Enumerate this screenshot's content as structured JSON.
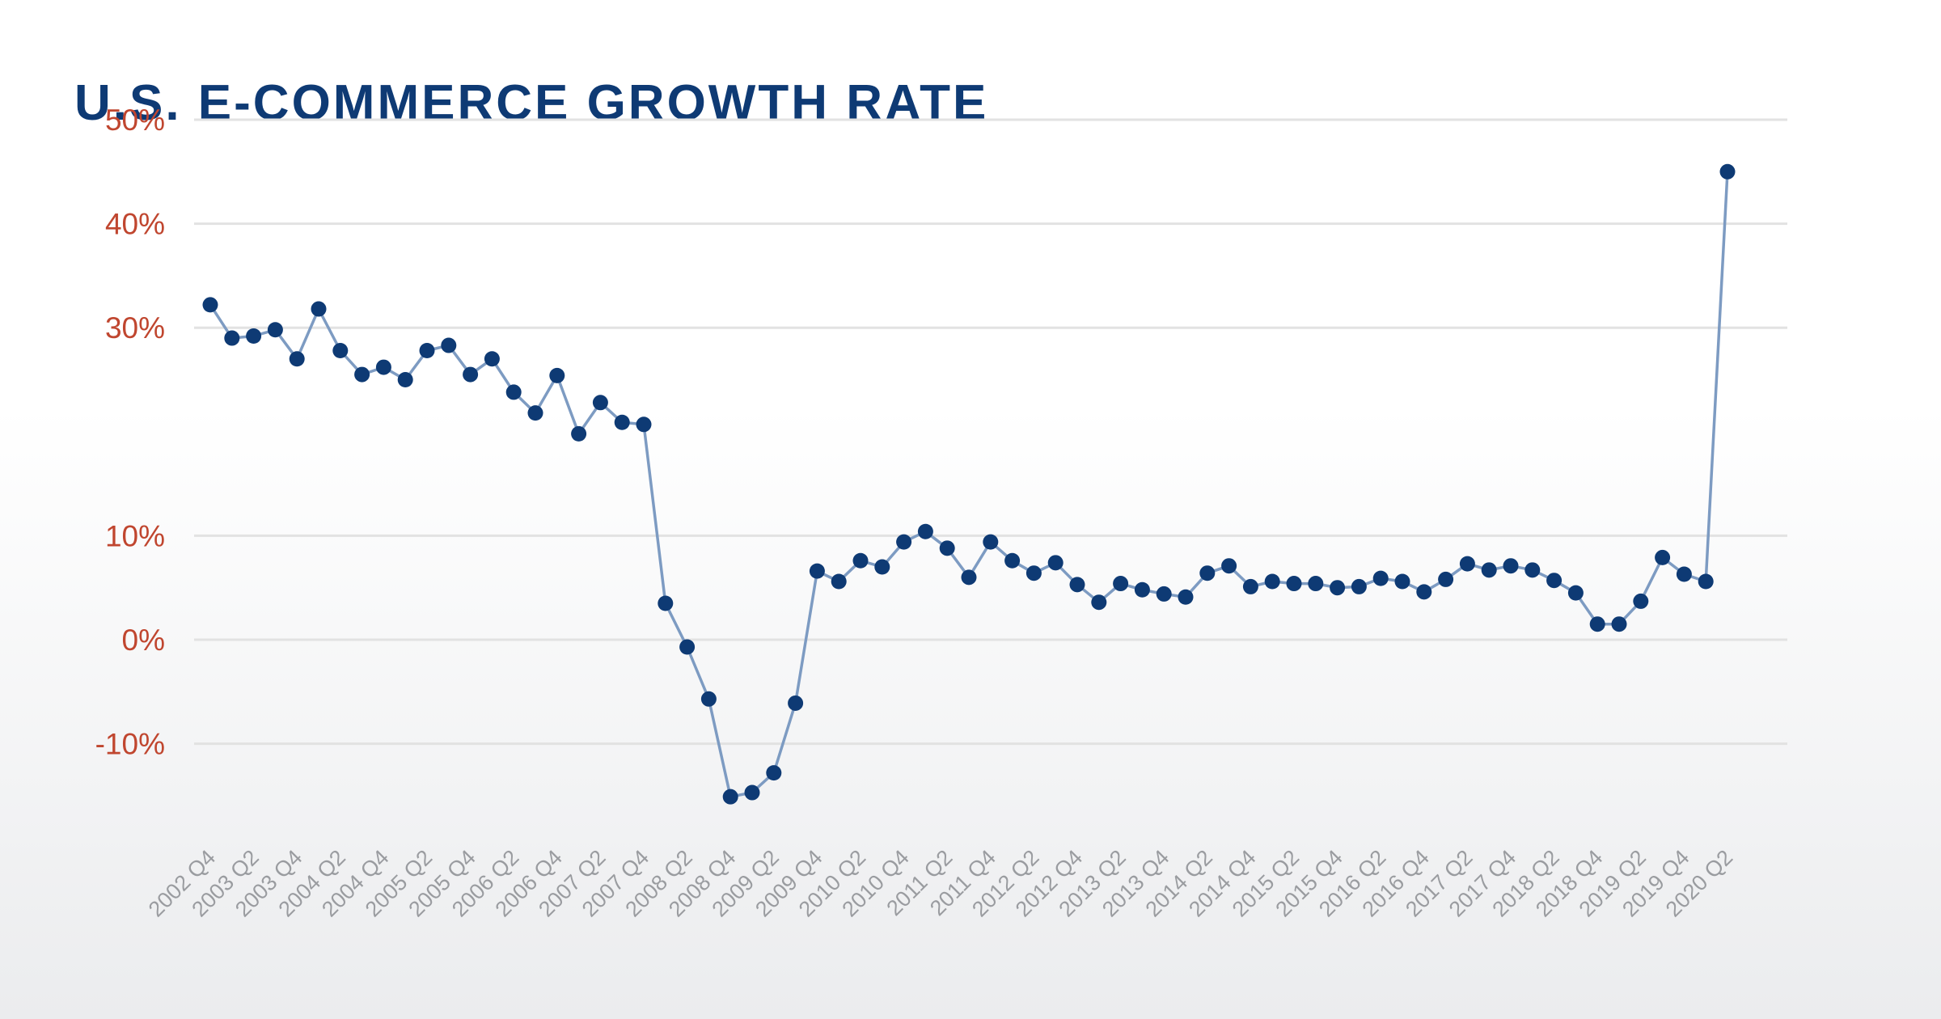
{
  "chart_data": {
    "type": "line",
    "title": "U.S. E-COMMERCE GROWTH RATE",
    "colors": {
      "title": "#0e3a74",
      "y_tick_labels": "#c0462f",
      "x_tick_labels": "#9a9ca0",
      "line": "#7d9bc2",
      "points": "#0e3a74",
      "grid": "#e2e2e2"
    },
    "grid": true,
    "legend": "none",
    "yticks": [
      {
        "value": 50,
        "label": "50%"
      },
      {
        "value": 40,
        "label": "40%"
      },
      {
        "value": 30,
        "label": "30%"
      },
      {
        "value": 10,
        "label": "10%"
      },
      {
        "value": 0,
        "label": "0%"
      },
      {
        "value": -10,
        "label": "-10%"
      }
    ],
    "x_tick_labels": [
      "2002 Q4",
      "2003 Q2",
      "2003 Q4",
      "2004 Q2",
      "2004 Q4",
      "2005 Q2",
      "2005 Q4",
      "2006 Q2",
      "2006 Q4",
      "2007 Q2",
      "2007 Q4",
      "2008 Q2",
      "2008 Q4",
      "2009 Q2",
      "2009 Q4",
      "2010 Q2",
      "2010 Q4",
      "2011 Q2",
      "2011 Q4",
      "2012 Q2",
      "2012 Q4",
      "2013 Q2",
      "2013 Q4",
      "2014 Q2",
      "2014 Q4",
      "2015 Q2",
      "2015 Q4",
      "2016 Q2",
      "2016 Q4",
      "2017 Q2",
      "2017 Q4",
      "2018 Q2",
      "2018 Q4",
      "2019 Q2",
      "2019 Q4",
      "2020 Q2"
    ],
    "series": [
      {
        "values": [
          32.2,
          29.0,
          29.2,
          29.8,
          27.0,
          31.8,
          27.8,
          25.5,
          26.2,
          25.0,
          27.8,
          28.3,
          25.5,
          27.0,
          23.8,
          21.8,
          25.4,
          19.8,
          22.8,
          20.9,
          20.7,
          3.5,
          -0.7,
          -5.7,
          -15.1,
          -14.7,
          -12.8,
          -6.1,
          6.6,
          5.6,
          7.6,
          7.0,
          9.4,
          10.4,
          8.8,
          6.0,
          9.4,
          7.6,
          6.4,
          7.4,
          5.3,
          3.6,
          5.4,
          4.8,
          4.4,
          4.1,
          6.4,
          7.1,
          5.1,
          5.6,
          5.4,
          5.4,
          5.0,
          5.1,
          5.9,
          5.6,
          4.6,
          5.8,
          7.3,
          6.7,
          7.1,
          6.7,
          5.7,
          4.5,
          1.5,
          1.5,
          3.7,
          7.9,
          6.3,
          5.6,
          45.0
        ]
      }
    ]
  }
}
